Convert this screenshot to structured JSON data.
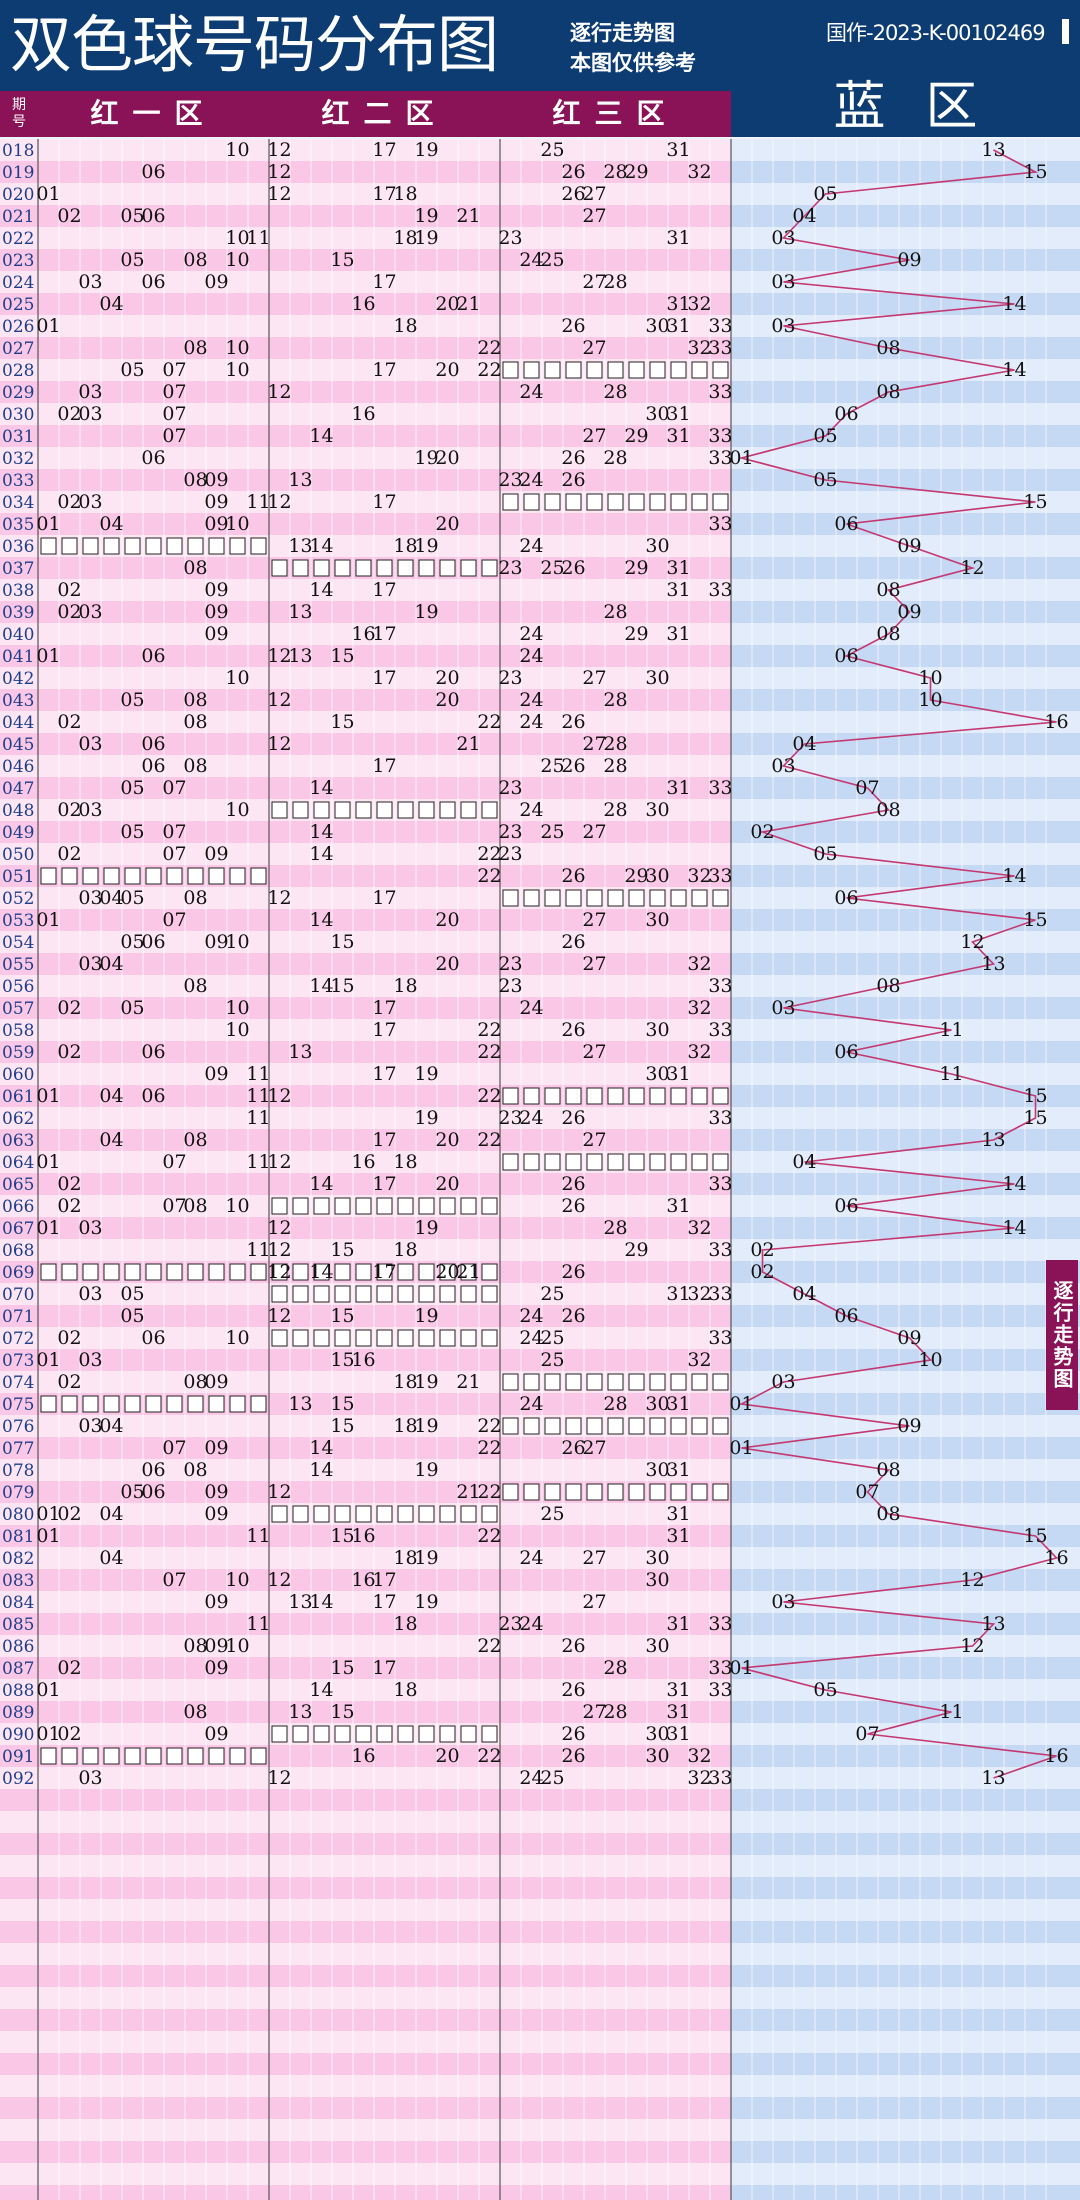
{
  "header": {
    "title": "双色球号码分布图",
    "subtitle_line1": "逐行走势图",
    "subtitle_line2": "本图仅供参考",
    "cert": "国作-2023-K-00102469"
  },
  "zones": {
    "period_label": "期号",
    "red1": "红一区",
    "red2": "红二区",
    "red3": "红三区",
    "blue": "蓝区"
  },
  "side_tab": "逐行走势图",
  "colors": {
    "header_bg": "#0d3c73",
    "zone_bg": "#8a1256",
    "red_row_a": "#fde6f3",
    "red_row_b": "#fbc7e6",
    "blue_row_a": "#e2ecfa",
    "blue_row_b": "#c5d9f4",
    "period_text": "#1e3e8a",
    "trend_line": "#c43770"
  },
  "chart_data": {
    "type": "table",
    "periods": [
      "018",
      "019",
      "020",
      "021",
      "022",
      "023",
      "024",
      "025",
      "026",
      "027",
      "028",
      "029",
      "030",
      "031",
      "032",
      "033",
      "034",
      "035",
      "036",
      "037",
      "038",
      "039",
      "040",
      "041",
      "042",
      "043",
      "044",
      "045",
      "046",
      "047",
      "048",
      "049",
      "050",
      "051",
      "052",
      "053",
      "054",
      "055",
      "056",
      "057",
      "058",
      "059",
      "060",
      "061",
      "062",
      "063",
      "064",
      "065",
      "066",
      "067",
      "068",
      "069",
      "070",
      "071",
      "072",
      "073",
      "074",
      "075",
      "076",
      "077",
      "078",
      "079",
      "080",
      "081",
      "082",
      "083",
      "084",
      "085",
      "086",
      "087",
      "088",
      "089",
      "090",
      "091",
      "092"
    ],
    "red": [
      [
        10,
        12,
        17,
        19,
        25,
        31
      ],
      [
        6,
        12,
        26,
        28,
        29,
        32
      ],
      [
        1,
        12,
        17,
        18,
        26,
        27
      ],
      [
        2,
        5,
        6,
        19,
        21,
        27
      ],
      [
        10,
        11,
        18,
        19,
        23,
        31
      ],
      [
        5,
        8,
        10,
        15,
        24,
        25
      ],
      [
        3,
        6,
        9,
        17,
        27,
        28
      ],
      [
        4,
        16,
        20,
        21,
        31,
        32
      ],
      [
        1,
        18,
        26,
        30,
        31,
        33
      ],
      [
        8,
        10,
        22,
        27,
        32,
        33
      ],
      [
        5,
        7,
        10,
        17,
        20,
        22
      ],
      [
        3,
        7,
        12,
        24,
        28,
        33
      ],
      [
        2,
        3,
        7,
        16,
        30,
        31
      ],
      [
        7,
        14,
        27,
        29,
        31,
        33
      ],
      [
        6,
        19,
        20,
        26,
        28,
        33
      ],
      [
        8,
        9,
        13,
        23,
        24,
        26
      ],
      [
        2,
        3,
        9,
        11,
        12,
        17
      ],
      [
        1,
        4,
        9,
        10,
        20,
        33
      ],
      [
        13,
        14,
        18,
        19,
        24,
        30
      ],
      [
        8,
        23,
        25,
        26,
        29,
        31
      ],
      [
        2,
        9,
        14,
        17,
        31,
        33
      ],
      [
        2,
        3,
        9,
        13,
        19,
        28
      ],
      [
        9,
        16,
        17,
        24,
        29,
        31
      ],
      [
        1,
        6,
        12,
        13,
        15,
        24
      ],
      [
        10,
        17,
        20,
        23,
        27,
        30
      ],
      [
        5,
        8,
        12,
        20,
        24,
        28
      ],
      [
        2,
        8,
        15,
        22,
        24,
        26
      ],
      [
        3,
        6,
        12,
        21,
        27,
        28
      ],
      [
        6,
        8,
        17,
        25,
        26,
        28
      ],
      [
        5,
        7,
        14,
        23,
        31,
        33
      ],
      [
        2,
        3,
        10,
        24,
        28,
        30
      ],
      [
        5,
        7,
        14,
        23,
        25,
        27
      ],
      [
        2,
        7,
        9,
        14,
        22,
        23
      ],
      [
        22,
        26,
        29,
        30,
        32,
        33
      ],
      [
        3,
        4,
        5,
        8,
        12,
        17
      ],
      [
        1,
        7,
        14,
        20,
        27,
        30
      ],
      [
        5,
        6,
        9,
        10,
        15,
        26
      ],
      [
        3,
        4,
        20,
        23,
        27,
        32
      ],
      [
        8,
        14,
        15,
        18,
        23,
        33
      ],
      [
        2,
        5,
        10,
        17,
        24,
        32
      ],
      [
        10,
        17,
        22,
        26,
        30,
        33
      ],
      [
        2,
        6,
        13,
        22,
        27,
        32
      ],
      [
        9,
        11,
        17,
        19,
        30,
        31
      ],
      [
        1,
        4,
        6,
        11,
        12,
        22
      ],
      [
        11,
        19,
        23,
        24,
        26,
        33
      ],
      [
        4,
        8,
        17,
        20,
        22,
        27
      ],
      [
        1,
        7,
        11,
        12,
        16,
        18
      ],
      [
        2,
        14,
        17,
        20,
        26,
        33
      ],
      [
        2,
        7,
        8,
        10,
        26,
        31
      ],
      [
        1,
        3,
        12,
        19,
        28,
        32
      ],
      [
        11,
        12,
        15,
        18,
        29,
        33
      ],
      [
        12,
        14,
        17,
        20,
        21,
        26
      ],
      [
        3,
        5,
        25,
        31,
        32,
        33
      ],
      [
        5,
        12,
        15,
        19,
        24,
        26
      ],
      [
        2,
        6,
        10,
        24,
        25,
        33
      ],
      [
        1,
        3,
        15,
        16,
        25,
        32
      ],
      [
        2,
        8,
        9,
        18,
        19,
        21
      ],
      [
        13,
        15,
        24,
        28,
        30,
        31
      ],
      [
        3,
        4,
        15,
        18,
        19,
        22
      ],
      [
        7,
        9,
        14,
        22,
        26,
        27
      ],
      [
        6,
        8,
        14,
        19,
        30,
        31
      ],
      [
        5,
        6,
        9,
        12,
        21,
        22
      ],
      [
        1,
        2,
        4,
        9,
        25,
        31
      ],
      [
        1,
        11,
        15,
        16,
        22,
        31
      ],
      [
        4,
        18,
        19,
        24,
        27,
        30
      ],
      [
        7,
        10,
        12,
        16,
        17,
        30
      ],
      [
        9,
        13,
        14,
        17,
        19,
        27
      ],
      [
        11,
        18,
        23,
        24,
        31,
        33
      ],
      [
        8,
        9,
        10,
        22,
        26,
        30
      ],
      [
        2,
        9,
        15,
        17,
        28,
        33
      ],
      [
        1,
        14,
        18,
        26,
        31,
        33
      ],
      [
        8,
        13,
        15,
        27,
        28,
        31
      ],
      [
        1,
        2,
        9,
        26,
        30,
        31
      ],
      [
        16,
        20,
        22,
        26,
        30,
        32
      ],
      [
        3,
        12,
        24,
        25,
        32,
        33
      ]
    ],
    "blue": [
      13,
      15,
      5,
      4,
      3,
      9,
      3,
      14,
      3,
      8,
      14,
      8,
      6,
      5,
      1,
      5,
      15,
      6,
      9,
      12,
      8,
      9,
      8,
      6,
      10,
      10,
      16,
      4,
      3,
      7,
      8,
      2,
      5,
      14,
      6,
      15,
      12,
      13,
      8,
      3,
      11,
      6,
      11,
      15,
      15,
      13,
      4,
      14,
      6,
      14,
      2,
      2,
      4,
      6,
      9,
      10,
      3,
      1,
      9,
      1,
      8,
      7,
      8,
      15,
      16,
      12,
      3,
      13,
      12,
      1,
      5,
      11,
      7,
      16,
      13
    ],
    "skipped_zones": {
      "red1": [
        "036",
        "051",
        "069",
        "075",
        "091"
      ],
      "red2": [
        "037",
        "048",
        "066",
        "069",
        "070",
        "072",
        "080",
        "090"
      ],
      "red3": [
        "028",
        "034",
        "052",
        "061",
        "064",
        "074",
        "076",
        "079"
      ]
    }
  }
}
